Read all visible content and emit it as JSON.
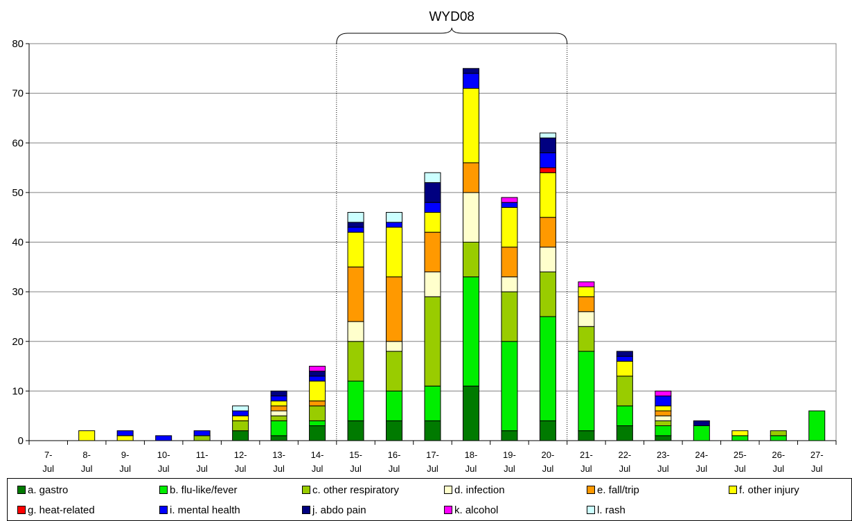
{
  "chart_data": {
    "type": "bar",
    "stacked": true,
    "annotation": "WYD08",
    "bracket_categories": [
      "15-Jul",
      "20-Jul"
    ],
    "ylim": [
      0,
      80
    ],
    "yticks": [
      0,
      10,
      20,
      30,
      40,
      50,
      60,
      70,
      80
    ],
    "grid": true,
    "legend_position": "bottom",
    "categories": [
      "7-Jul",
      "8-Jul",
      "9-Jul",
      "10-Jul",
      "11-Jul",
      "12-Jul",
      "13-Jul",
      "14-Jul",
      "15-Jul",
      "16-Jul",
      "17-Jul",
      "18-Jul",
      "19-Jul",
      "20-Jul",
      "21-Jul",
      "22-Jul",
      "23-Jul",
      "24-Jul",
      "25-Jul",
      "26-Jul",
      "27-Jul"
    ],
    "series": [
      {
        "name": "a. gastro",
        "color": "#007a00",
        "values": [
          0,
          0,
          0,
          0,
          0,
          2,
          1,
          3,
          4,
          4,
          4,
          11,
          2,
          4,
          2,
          3,
          1,
          0,
          0,
          0,
          0
        ]
      },
      {
        "name": "b. flu-like/fever",
        "color": "#00ee00",
        "values": [
          0,
          0,
          0,
          0,
          0,
          0,
          3,
          1,
          8,
          6,
          7,
          22,
          18,
          21,
          16,
          4,
          2,
          3,
          1,
          1,
          6
        ]
      },
      {
        "name": "c. other respiratory",
        "color": "#99cc00",
        "values": [
          0,
          0,
          0,
          0,
          1,
          2,
          1,
          3,
          8,
          8,
          18,
          7,
          10,
          9,
          5,
          6,
          1,
          0,
          0,
          1,
          0
        ]
      },
      {
        "name": "d. infection",
        "color": "#ffffcc",
        "values": [
          0,
          0,
          0,
          0,
          0,
          0,
          1,
          0,
          4,
          2,
          5,
          10,
          3,
          5,
          3,
          0,
          1,
          0,
          0,
          0,
          0
        ]
      },
      {
        "name": "e. fall/trip",
        "color": "#ff9900",
        "values": [
          0,
          0,
          0,
          0,
          0,
          0,
          1,
          1,
          11,
          13,
          8,
          6,
          6,
          6,
          3,
          0,
          1,
          0,
          0,
          0,
          0
        ]
      },
      {
        "name": "f. other injury",
        "color": "#ffff00",
        "values": [
          0,
          2,
          1,
          0,
          0,
          1,
          1,
          4,
          7,
          10,
          4,
          15,
          8,
          9,
          2,
          3,
          1,
          0,
          1,
          0,
          0
        ]
      },
      {
        "name": "g. heat-related",
        "color": "#ff0000",
        "values": [
          0,
          0,
          0,
          0,
          0,
          0,
          0,
          0,
          0,
          0,
          0,
          0,
          0,
          1,
          0,
          0,
          0,
          0,
          0,
          0,
          0
        ]
      },
      {
        "name": "i. mental health",
        "color": "#0000ff",
        "values": [
          0,
          0,
          1,
          1,
          1,
          1,
          1,
          1,
          1,
          1,
          2,
          3,
          1,
          3,
          0,
          1,
          2,
          0,
          0,
          0,
          0
        ]
      },
      {
        "name": "j. abdo pain",
        "color": "#000080",
        "values": [
          0,
          0,
          0,
          0,
          0,
          0,
          1,
          1,
          1,
          0,
          4,
          1,
          0,
          3,
          0,
          1,
          0,
          1,
          0,
          0,
          0
        ]
      },
      {
        "name": "k. alcohol",
        "color": "#ff00ff",
        "values": [
          0,
          0,
          0,
          0,
          0,
          0,
          0,
          1,
          0,
          0,
          0,
          0,
          1,
          0,
          1,
          0,
          1,
          0,
          0,
          0,
          0
        ]
      },
      {
        "name": "l. rash",
        "color": "#ccffff",
        "values": [
          0,
          0,
          0,
          0,
          0,
          1,
          0,
          0,
          2,
          2,
          2,
          0,
          0,
          1,
          0,
          0,
          0,
          0,
          0,
          0,
          0
        ]
      }
    ]
  }
}
